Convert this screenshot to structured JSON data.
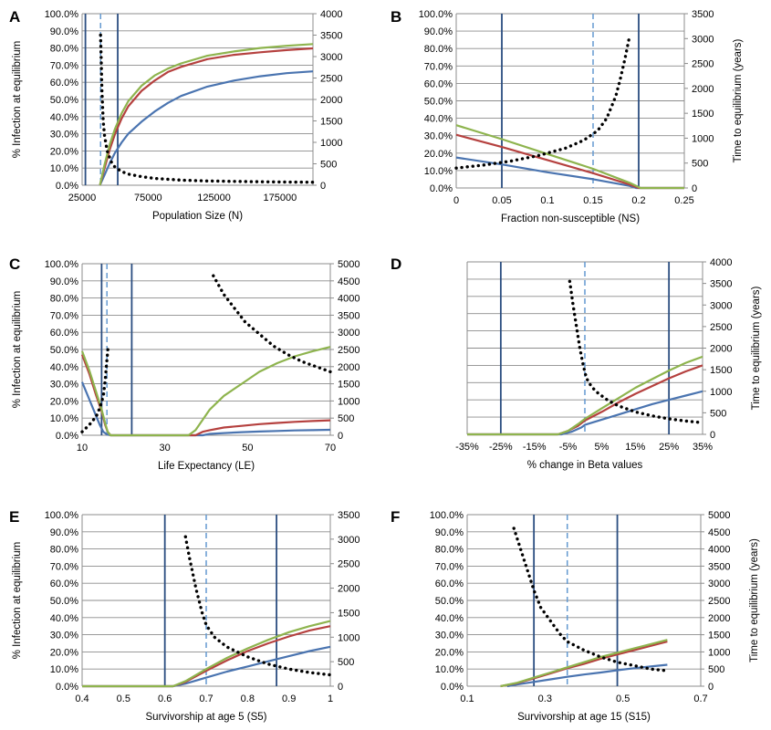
{
  "colors": {
    "blue": "#4a74b0",
    "red": "#b5413f",
    "green": "#8eb44e",
    "vline": "#2a4d80",
    "dash": "#6499d0",
    "dots": "#000000",
    "grid": "#8c8c8c"
  },
  "chart_data": [
    {
      "panel": "A",
      "type": "line",
      "xlabel": "Population Size (N)",
      "ylabel": "% Infection at equilibrium",
      "y2label": "",
      "xlim": [
        25000,
        200000
      ],
      "xticks": [
        "25000",
        "75000",
        "125000",
        "175000"
      ],
      "ylim": [
        0,
        100
      ],
      "yticks": [
        "0.0%",
        "10.0%",
        "20.0%",
        "30.0%",
        "40.0%",
        "50.0%",
        "60.0%",
        "70.0%",
        "80.0%",
        "90.0%",
        "100.0%"
      ],
      "y2lim": [
        0,
        4000
      ],
      "y2ticks": [
        "0",
        "500",
        "1000",
        "1500",
        "2000",
        "2500",
        "3000",
        "3500",
        "4000"
      ],
      "vlines": [
        27500,
        52000
      ],
      "dashed_vline": 39000,
      "series": [
        {
          "color": "green",
          "x": [
            38500,
            42000,
            46000,
            50000,
            55000,
            60000,
            70000,
            80000,
            90000,
            100000,
            120000,
            140000,
            160000,
            180000,
            200000
          ],
          "y": [
            0,
            12,
            24,
            33,
            42,
            49,
            58,
            64,
            68,
            71,
            75.5,
            78,
            80,
            81.3,
            82.3
          ]
        },
        {
          "color": "red",
          "x": [
            38500,
            42000,
            46000,
            50000,
            55000,
            60000,
            70000,
            80000,
            90000,
            100000,
            120000,
            140000,
            160000,
            180000,
            200000
          ],
          "y": [
            0,
            10,
            21,
            30,
            39,
            46,
            55,
            61,
            66,
            69,
            73.5,
            76,
            77.5,
            78.8,
            79.8
          ]
        },
        {
          "color": "blue",
          "x": [
            38500,
            42000,
            46000,
            50000,
            55000,
            60000,
            70000,
            80000,
            90000,
            100000,
            120000,
            140000,
            160000,
            180000,
            200000
          ],
          "y": [
            0,
            6,
            13,
            19,
            25,
            30,
            37,
            43,
            48,
            52,
            57.5,
            61,
            63.5,
            65.3,
            66.4
          ]
        }
      ],
      "dotted": {
        "x": [
          39000,
          39500,
          40000,
          41000,
          42000,
          44000,
          47000,
          50000,
          55000,
          60000,
          70000,
          80000,
          100000,
          120000,
          150000,
          180000,
          200000
        ],
        "y": [
          3500,
          2850,
          2200,
          1500,
          1150,
          800,
          550,
          420,
          320,
          260,
          200,
          160,
          120,
          100,
          85,
          75,
          70
        ]
      }
    },
    {
      "panel": "B",
      "type": "line",
      "xlabel": "Fraction non-susceptible (NS)",
      "ylabel": "",
      "y2label": "Time to equilibrium (years)",
      "xlim": [
        0,
        0.25
      ],
      "xticks": [
        "0",
        "0.05",
        "0.1",
        "0.15",
        "0.2",
        "0.25"
      ],
      "ylim": [
        0,
        100
      ],
      "yticks": [
        "0.0%",
        "10.0%",
        "20.0%",
        "30.0%",
        "40.0%",
        "50.0%",
        "60.0%",
        "70.0%",
        "80.0%",
        "90.0%",
        "100.0%"
      ],
      "y2lim": [
        0,
        3500
      ],
      "y2ticks": [
        "0",
        "500",
        "1000",
        "1500",
        "2000",
        "2500",
        "3000",
        "3500"
      ],
      "vlines": [
        0.05,
        0.2
      ],
      "dashed_vline": 0.15,
      "series": [
        {
          "color": "green",
          "x": [
            0,
            0.05,
            0.1,
            0.15,
            0.19,
            0.202,
            0.25
          ],
          "y": [
            36,
            28,
            19.5,
            11,
            3,
            0,
            0
          ]
        },
        {
          "color": "red",
          "x": [
            0,
            0.05,
            0.1,
            0.15,
            0.19,
            0.2,
            0.25
          ],
          "y": [
            30.5,
            23.5,
            16,
            8.5,
            2,
            0,
            0
          ]
        },
        {
          "color": "blue",
          "x": [
            0,
            0.05,
            0.1,
            0.15,
            0.19,
            0.197,
            0.25
          ],
          "y": [
            17.5,
            13.5,
            9,
            5,
            1.2,
            0,
            0
          ]
        }
      ],
      "dotted": {
        "x": [
          0,
          0.03,
          0.06,
          0.09,
          0.12,
          0.14,
          0.155,
          0.165,
          0.175,
          0.18,
          0.185,
          0.19
        ],
        "y": [
          400,
          460,
          540,
          650,
          800,
          960,
          1150,
          1400,
          1850,
          2200,
          2600,
          3050
        ]
      }
    },
    {
      "panel": "C",
      "type": "line",
      "xlabel": "Life Expectancy (LE)",
      "ylabel": "% Infection at equilibrium",
      "y2label": "",
      "xlim": [
        10,
        80
      ],
      "xticks": [
        "10",
        "30",
        "50",
        "70"
      ],
      "ylim": [
        0,
        100
      ],
      "yticks": [
        "0.0%",
        "10.0%",
        "20.0%",
        "30.0%",
        "40.0%",
        "50.0%",
        "60.0%",
        "70.0%",
        "80.0%",
        "90.0%",
        "100.0%"
      ],
      "y2lim": [
        0,
        5000
      ],
      "y2ticks": [
        "0",
        "500",
        "1000",
        "1500",
        "2000",
        "2500",
        "3000",
        "3500",
        "4000",
        "4500",
        "5000"
      ],
      "vlines": [
        15.5,
        24
      ],
      "dashed_vline": 17,
      "series": [
        {
          "color": "green",
          "x": [
            10,
            12,
            14,
            15.5,
            16.5,
            17.2,
            18,
            40,
            42,
            44,
            46,
            50,
            55,
            60,
            65,
            70,
            75,
            80
          ],
          "y": [
            49,
            38,
            25,
            15,
            7,
            2,
            0,
            0,
            3,
            9,
            15,
            23,
            30,
            37,
            42,
            46,
            49,
            51.5
          ]
        },
        {
          "color": "red",
          "x": [
            10,
            12,
            14,
            15.5,
            16.5,
            17.2,
            18,
            42,
            44,
            46,
            50,
            55,
            60,
            65,
            70,
            75,
            80
          ],
          "y": [
            47,
            36,
            23,
            14,
            6,
            2,
            0,
            0,
            2,
            3,
            4.5,
            5.5,
            6.5,
            7.2,
            7.8,
            8.3,
            8.7
          ]
        },
        {
          "color": "blue",
          "x": [
            10,
            12,
            14,
            15,
            16,
            17,
            18,
            44,
            46,
            50,
            55,
            60,
            65,
            70,
            75,
            80
          ],
          "y": [
            31,
            21,
            11,
            6,
            2,
            0.5,
            0,
            0,
            0.8,
            1.3,
            1.8,
            2.2,
            2.5,
            2.8,
            3,
            3.2
          ]
        }
      ],
      "dotted": {
        "x": [
          10,
          12,
          14,
          15,
          16,
          16.5,
          17,
          17.3
        ],
        "y": [
          100,
          300,
          550,
          800,
          1150,
          1600,
          2200,
          2550
        ],
        "x2": [
          47,
          50,
          53,
          56,
          60,
          64,
          68,
          72,
          76,
          80
        ],
        "y2": [
          4650,
          4100,
          3700,
          3300,
          2950,
          2600,
          2350,
          2150,
          2000,
          1850
        ]
      }
    },
    {
      "panel": "D",
      "type": "line",
      "xlabel": "% change in Beta values",
      "ylabel": "",
      "y2label": "Time to equilibrium (years)",
      "xlim": [
        -35,
        35
      ],
      "xticks": [
        "-35%",
        "-25%",
        "-15%",
        "-5%",
        "5%",
        "15%",
        "25%",
        "35%"
      ],
      "ylim": [
        0,
        100
      ],
      "yticks": [],
      "y2lim": [
        0,
        4000
      ],
      "y2ticks": [
        "0",
        "500",
        "1000",
        "1500",
        "2000",
        "2500",
        "3000",
        "3500",
        "4000"
      ],
      "vlines": [
        -25,
        25
      ],
      "dashed_vline": 0,
      "series": [
        {
          "color": "green",
          "x": [
            -35,
            -8,
            -5,
            -2,
            0,
            5,
            10,
            15,
            20,
            25,
            30,
            35
          ],
          "y": [
            0,
            0,
            2,
            6,
            9,
            15,
            21,
            27,
            32,
            37,
            41.5,
            45
          ]
        },
        {
          "color": "red",
          "x": [
            -35,
            -8,
            -5,
            -2,
            0,
            5,
            10,
            15,
            20,
            25,
            30,
            35
          ],
          "y": [
            0,
            0,
            2,
            5,
            8,
            13,
            18.5,
            23.5,
            28,
            32.5,
            36.5,
            40
          ]
        },
        {
          "color": "blue",
          "x": [
            -35,
            -7,
            -4,
            -1,
            0,
            5,
            10,
            15,
            20,
            25,
            30,
            35
          ],
          "y": [
            0,
            0,
            1.5,
            4,
            5.5,
            8.5,
            11.5,
            14.5,
            17.5,
            20,
            22.5,
            25
          ]
        }
      ],
      "dotted": {
        "x": [
          -4.5,
          -3.5,
          -2.5,
          -1.5,
          -0.5,
          0.5,
          2,
          4,
          7,
          10,
          15,
          20,
          25,
          30,
          35
        ],
        "y": [
          3550,
          3000,
          2500,
          2000,
          1600,
          1300,
          1100,
          950,
          780,
          660,
          520,
          430,
          360,
          310,
          270
        ]
      }
    },
    {
      "panel": "E",
      "type": "line",
      "xlabel": "Survivorship at age 5 (S5)",
      "ylabel": "% Infection at equilibrium",
      "y2label": "",
      "xlim": [
        0.4,
        1
      ],
      "xticks": [
        "0.4",
        "0.5",
        "0.6",
        "0.7",
        "0.8",
        "0.9",
        "1"
      ],
      "ylim": [
        0,
        100
      ],
      "yticks": [
        "0.0%",
        "10.0%",
        "20.0%",
        "30.0%",
        "40.0%",
        "50.0%",
        "60.0%",
        "70.0%",
        "80.0%",
        "90.0%",
        "100.0%"
      ],
      "y2lim": [
        0,
        3500
      ],
      "y2ticks": [
        "0",
        "500",
        "1000",
        "1500",
        "2000",
        "2500",
        "3000",
        "3500"
      ],
      "vlines": [
        0.6,
        0.87
      ],
      "dashed_vline": 0.7,
      "series": [
        {
          "color": "green",
          "x": [
            0.4,
            0.62,
            0.65,
            0.7,
            0.75,
            0.8,
            0.85,
            0.9,
            0.95,
            1
          ],
          "y": [
            0,
            0,
            3,
            10,
            16.5,
            22,
            27,
            31.5,
            35,
            38
          ]
        },
        {
          "color": "red",
          "x": [
            0.4,
            0.62,
            0.65,
            0.7,
            0.75,
            0.8,
            0.85,
            0.9,
            0.95,
            1
          ],
          "y": [
            0,
            0,
            2.5,
            9,
            15,
            20.5,
            25,
            29,
            32.5,
            35
          ]
        },
        {
          "color": "blue",
          "x": [
            0.4,
            0.62,
            0.65,
            0.7,
            0.75,
            0.8,
            0.85,
            0.9,
            0.95,
            1
          ],
          "y": [
            0,
            0,
            1.5,
            5,
            8.5,
            11.5,
            14.5,
            17.5,
            20.5,
            23
          ]
        }
      ],
      "dotted": {
        "x": [
          0.65,
          0.66,
          0.675,
          0.69,
          0.7,
          0.72,
          0.75,
          0.8,
          0.85,
          0.9,
          0.95,
          1
        ],
        "y": [
          3050,
          2600,
          2000,
          1500,
          1250,
          1000,
          800,
          600,
          450,
          350,
          280,
          230
        ]
      }
    },
    {
      "panel": "F",
      "type": "line",
      "xlabel": "Survivorship at age 15 (S15)",
      "ylabel": "",
      "y2label": "Time to equilibrium (years)",
      "xlim": [
        0.1,
        0.8
      ],
      "xticks": [
        "0.1",
        "0.3",
        "0.5",
        "0.7"
      ],
      "ylim": [
        0,
        100
      ],
      "yticks": [
        "0.0%",
        "10.0%",
        "20.0%",
        "30.0%",
        "40.0%",
        "50.0%",
        "60.0%",
        "70.0%",
        "80.0%",
        "90.0%",
        "100.0%"
      ],
      "y2lim": [
        0,
        5000
      ],
      "y2ticks": [
        "0",
        "500",
        "1000",
        "1500",
        "2000",
        "2500",
        "3000",
        "3500",
        "4000",
        "4500",
        "5000"
      ],
      "vlines": [
        0.3,
        0.55
      ],
      "dashed_vline": 0.4,
      "series": [
        {
          "color": "green",
          "x": [
            0.2,
            0.25,
            0.3,
            0.35,
            0.4,
            0.45,
            0.5,
            0.55,
            0.6,
            0.65,
            0.7
          ],
          "y": [
            0,
            2,
            5,
            8,
            11,
            14,
            17,
            19.5,
            22,
            24.5,
            27
          ]
        },
        {
          "color": "red",
          "x": [
            0.2,
            0.25,
            0.3,
            0.35,
            0.4,
            0.45,
            0.5,
            0.55,
            0.6,
            0.65,
            0.7
          ],
          "y": [
            0,
            1.8,
            4.5,
            7.5,
            10.5,
            13,
            16,
            18.5,
            21,
            23.5,
            26
          ]
        },
        {
          "color": "blue",
          "x": [
            0.22,
            0.25,
            0.3,
            0.35,
            0.4,
            0.45,
            0.5,
            0.55,
            0.6,
            0.65,
            0.7
          ],
          "y": [
            0,
            1,
            2.5,
            4,
            5.5,
            6.8,
            8,
            9.3,
            10.5,
            11.5,
            12.5
          ]
        }
      ],
      "dotted": {
        "x": [
          0.24,
          0.26,
          0.28,
          0.3,
          0.32,
          0.35,
          0.38,
          0.4,
          0.45,
          0.5,
          0.55,
          0.6,
          0.65,
          0.7
        ],
        "y": [
          4600,
          4000,
          3400,
          2800,
          2300,
          1900,
          1500,
          1300,
          1050,
          850,
          700,
          600,
          500,
          450
        ]
      }
    }
  ]
}
